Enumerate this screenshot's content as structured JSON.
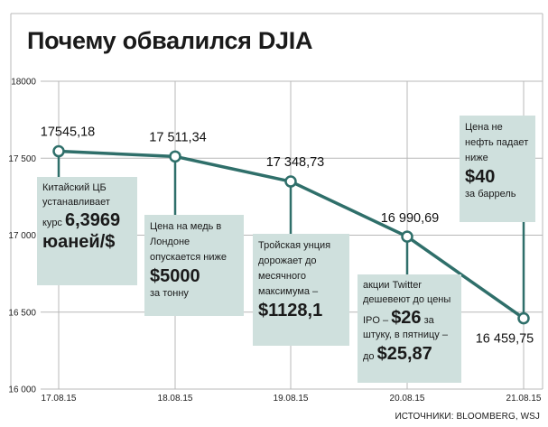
{
  "title": "Почему обвалился DJIA",
  "source": "ИСТОЧНИКИ: BLOOMBERG, WSJ",
  "colors": {
    "line": "#2f6f6a",
    "note_bg": "#cfe0dd",
    "grid": "#b8b8b8"
  },
  "chart_data": {
    "type": "line",
    "categories": [
      "17.08.15",
      "18.08.15",
      "19.08.15",
      "20.08.15",
      "21.08.15"
    ],
    "values": [
      17545.18,
      17511.34,
      17348.73,
      16990.69,
      16459.75
    ],
    "ylim": [
      16000,
      18000
    ],
    "y_ticks": [
      18000,
      17500,
      17000,
      16500,
      16000
    ],
    "y_tick_labels": [
      "18000",
      "17 500",
      "17 000",
      "16 500",
      "16 000"
    ],
    "data_labels": [
      "17545,18",
      "17 511,34",
      "17 348,73",
      "16 990,69",
      "16 459,75"
    ],
    "grid": true
  },
  "notes": [
    {
      "text_pre": "Китайский ЦБ устанавливает",
      "text_mid": "курс",
      "big1": "6,3969",
      "big2": "юаней/$",
      "text_post": ""
    },
    {
      "text_pre": "Цена на медь в Лондоне опускается ниже",
      "big1": "$5000",
      "text_post": "за тонну"
    },
    {
      "text_pre": "Тройская унция дорожает до месячного максимума –",
      "big1": "$1128,1",
      "text_post": ""
    },
    {
      "line1": "акции Twitter",
      "line2": "дешевеют до цены",
      "line3_pre": "IPO –",
      "big1": "$26",
      "line3_post": "за",
      "line4": "штуку, в пятницу –",
      "line5_pre": "до",
      "big2": "$25,87"
    },
    {
      "text_pre": "Цена не нефть падает ниже",
      "big1": "$40",
      "text_post": "за баррель"
    }
  ]
}
